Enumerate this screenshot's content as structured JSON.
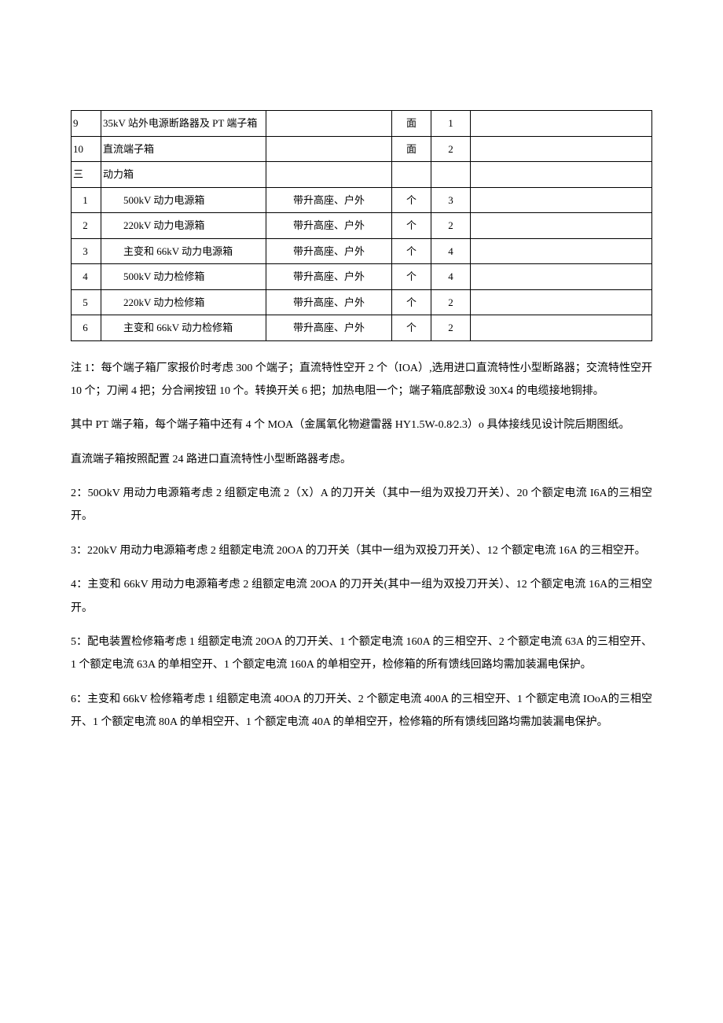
{
  "table": {
    "rows": [
      {
        "idx": "9",
        "name": "35kV 站外电源断路器及 PT 端子箱",
        "spec": "",
        "unit": "面",
        "qty": "1",
        "remark": "",
        "indent": false
      },
      {
        "idx": "10",
        "name": "直流端子箱",
        "spec": "",
        "unit": "面",
        "qty": "2",
        "remark": "",
        "indent": false
      },
      {
        "idx": "三",
        "name": "动力箱",
        "spec": "",
        "unit": "",
        "qty": "",
        "remark": "",
        "indent": false
      },
      {
        "idx": "1",
        "name": "500kV 动力电源箱",
        "spec": "带升高座、户外",
        "unit": "个",
        "qty": "3",
        "remark": "",
        "indent": true
      },
      {
        "idx": "2",
        "name": "220kV 动力电源箱",
        "spec": "带升高座、户外",
        "unit": "个",
        "qty": "2",
        "remark": "",
        "indent": true
      },
      {
        "idx": "3",
        "name": "主变和 66kV 动力电源箱",
        "spec": "带升高座、户外",
        "unit": "个",
        "qty": "4",
        "remark": "",
        "indent": true
      },
      {
        "idx": "4",
        "name": "500kV 动力检修箱",
        "spec": "带升高座、户外",
        "unit": "个",
        "qty": "4",
        "remark": "",
        "indent": true
      },
      {
        "idx": "5",
        "name": "220kV 动力检修箱",
        "spec": "带升高座、户外",
        "unit": "个",
        "qty": "2",
        "remark": "",
        "indent": true
      },
      {
        "idx": "6",
        "name": "主变和 66kV 动力检修箱",
        "spec": "带升高座、户外",
        "unit": "个",
        "qty": "2",
        "remark": "",
        "indent": true
      }
    ]
  },
  "notes": [
    "注 1：每个端子箱厂家报价时考虑 300 个端子；直流特性空开 2 个（IOA）,选用进口直流特性小型断路器；交流特性空开 10 个；刀闸 4 把；分合闸按钮 10 个。转换开关 6 把；加热电阻一个；端子箱底部敷设 30X4 的电缆接地铜排。",
    "其中 PT 端子箱，每个端子箱中还有 4 个 MOA（金属氧化物避雷器 HY1.5W-0.8⁄2.3）o 具体接线见设计院后期图纸。",
    "直流端子箱按照配置 24 路进口直流特性小型断路器考虑。",
    "2：50OkV 用动力电源箱考虑 2 组额定电流 2（X）A 的刀开关（其中一组为双投刀开关）、20 个额定电流 I6A的三相空开。",
    "3：220kV 用动力电源箱考虑 2 组额定电流 20OA 的刀开关（其中一组为双投刀开关）、12 个额定电流 16A 的三相空开。",
    "4：主变和 66kV 用动力电源箱考虑 2 组额定电流 20OA 的刀开关(其中一组为双投刀开关）、12 个额定电流 16A的三相空开。",
    "5：配电装置检修箱考虑 1 组额定电流 20OA 的刀开关、1 个额定电流 160A 的三相空开、2 个额定电流 63A 的三相空开、1 个额定电流 63A 的单相空开、1 个额定电流 160A 的单相空开，检修箱的所有馈线回路均需加装漏电保护。",
    "6：主变和 66kV 检修箱考虑 1 组额定电流 40OA 的刀开关、2 个额定电流 400A 的三相空开、1 个额定电流 IOoA的三相空开、1 个额定电流 80A 的单相空开、1 个额定电流 40A 的单相空开，检修箱的所有馈线回路均需加装漏电保护。"
  ]
}
